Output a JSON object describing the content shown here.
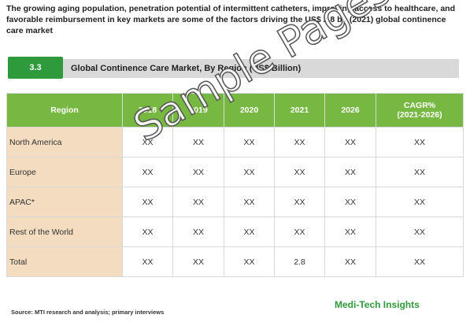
{
  "header": {
    "text": "The growing aging population, penetration potential of intermittent catheters, improving access to healthcare, and favorable reimbursement in key markets are some of the factors driving the US$ 2.8 bn (2021) global continence care market"
  },
  "section": {
    "number": "3.3",
    "title": "Global Continence Care Market, By Region (US$ Billion)"
  },
  "table": {
    "columns": [
      "Region",
      "2018",
      "2019",
      "2020",
      "2021",
      "2026",
      "CAGR%\n(2021-2026)"
    ],
    "rows": [
      [
        "North America",
        "XX",
        "XX",
        "XX",
        "XX",
        "XX",
        "XX"
      ],
      [
        "Europe",
        "XX",
        "XX",
        "XX",
        "XX",
        "XX",
        "XX"
      ],
      [
        "APAC*",
        "XX",
        "XX",
        "XX",
        "XX",
        "XX",
        "XX"
      ],
      [
        "Rest of the World",
        "XX",
        "XX",
        "XX",
        "XX",
        "XX",
        "XX"
      ],
      [
        "Total",
        "XX",
        "XX",
        "XX",
        "2.8",
        "XX",
        "XX"
      ]
    ]
  },
  "watermark": "Sample Pages",
  "source": "Source: MTI research and analysis; primary interviews",
  "logo": "Medi-Tech Insights"
}
